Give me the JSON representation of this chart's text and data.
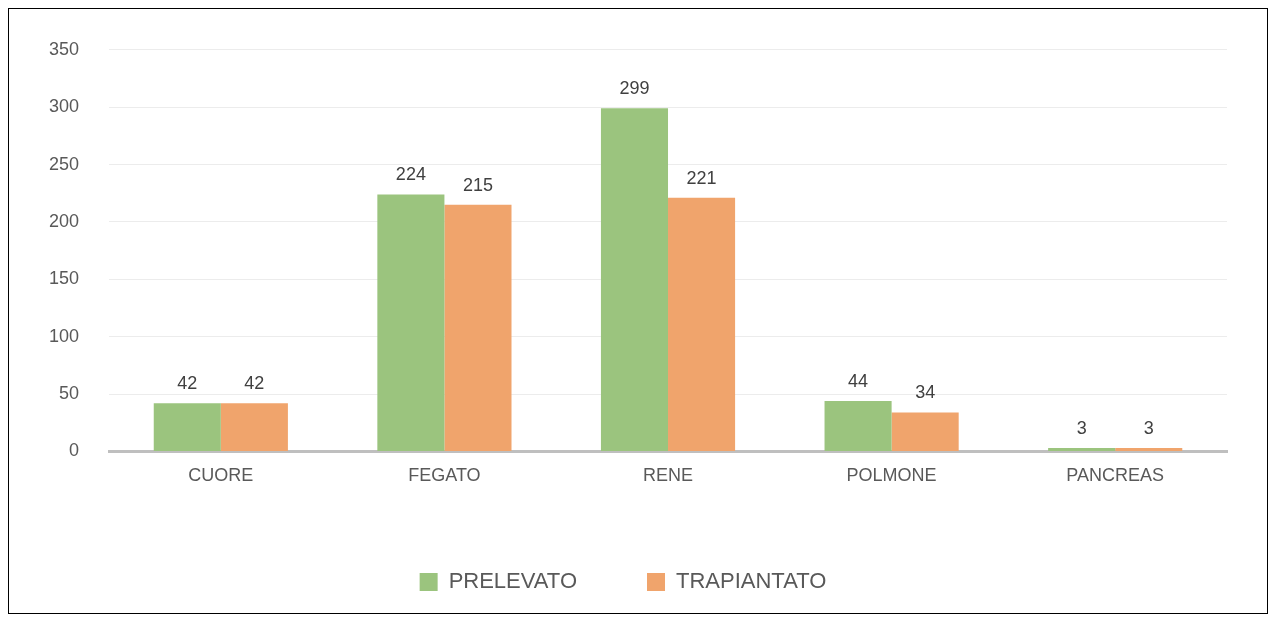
{
  "chart_data": {
    "type": "bar",
    "categories": [
      "CUORE",
      "FEGATO",
      "RENE",
      "POLMONE",
      "PANCREAS"
    ],
    "series": [
      {
        "name": "PRELEVATO",
        "color": "#9bc47e",
        "values": [
          42,
          224,
          299,
          44,
          3
        ]
      },
      {
        "name": "TRAPIANTATO",
        "color": "#f0a46c",
        "values": [
          42,
          215,
          221,
          34,
          3
        ]
      }
    ],
    "ylim": [
      0,
      350
    ],
    "yticks": [
      0,
      50,
      100,
      150,
      200,
      250,
      300,
      350
    ],
    "grid": "y",
    "legend": "bottom",
    "data_labels": true
  }
}
